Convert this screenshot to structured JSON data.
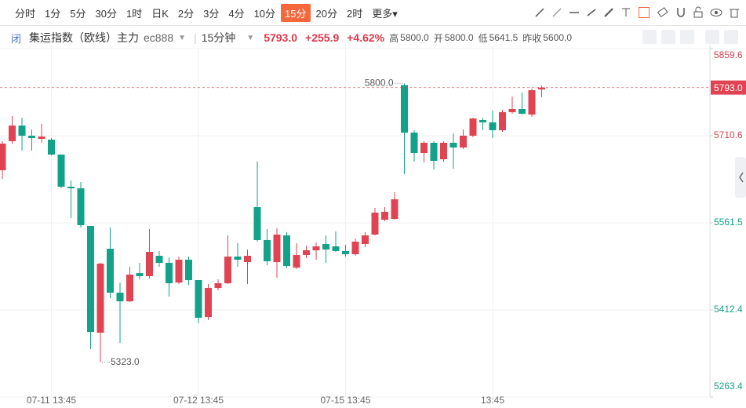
{
  "toolbar": {
    "periods": [
      "分时",
      "1分",
      "5分",
      "30分",
      "1时",
      "日K",
      "2分",
      "3分",
      "4分",
      "10分",
      "15分",
      "20分",
      "2时",
      "更多▾"
    ],
    "active": 10
  },
  "header": {
    "icon": "闭",
    "name": "集运指数（欧线）主力",
    "code": "ec888",
    "interval": "15分钟",
    "price": "5793.0",
    "change": "+255.9",
    "change_pct": "+4.62%",
    "high_label": "高",
    "high": "5800.0",
    "open_label": "开",
    "open": "5800.0",
    "low_label": "低",
    "low": "5641.5",
    "prev_close_label": "昨收",
    "prev_close": "5600.0"
  },
  "chart_data": {
    "type": "candlestick",
    "categories": [
      null,
      null,
      null,
      null,
      null,
      "07-11 13:45",
      null,
      null,
      null,
      null,
      null,
      null,
      null,
      null,
      null,
      null,
      null,
      null,
      null,
      null,
      "07-12 13:45",
      null,
      null,
      null,
      null,
      null,
      null,
      null,
      null,
      null,
      null,
      null,
      null,
      null,
      null,
      "07-15 13:45",
      null,
      null,
      null,
      null,
      null,
      null,
      null,
      null,
      null,
      null,
      null,
      null,
      null,
      null,
      "13:45",
      null,
      null,
      null,
      null,
      null
    ],
    "open": [
      5651.5,
      5701.2,
      5728.0,
      5710.6,
      5705.2,
      5703.9,
      5678.3,
      5623.3,
      5620.6,
      5556.1,
      5373.5,
      5517.2,
      5442.0,
      5427.2,
      5475.5,
      5470.2,
      5505.1,
      5493.0,
      5459.4,
      5498.4,
      5463.5,
      5400.3,
      5450.0,
      5458.1,
      5503.8,
      5494.3,
      5588.4,
      5532.0,
      5494.3,
      5540.0,
      5484.9,
      5506.4,
      5514.5,
      5525.2,
      5521.2,
      5513.2,
      5507.8,
      5525.2,
      5541.4,
      5566.9,
      5568.2,
      5797.3,
      5715.9,
      5681.0,
      5698.5,
      5670.3,
      5698.5,
      5690.4,
      5710.6,
      5737.4,
      5733.4,
      5720.0,
      5750.9,
      5756.2,
      5746.8,
      5789.8
    ],
    "high": [
      5701.2,
      5744.1,
      5741.5,
      5721.3,
      5730.7,
      5706.5,
      5678.3,
      5634.0,
      5631.3,
      5556.1,
      5493.0,
      5553.4,
      5459.4,
      5486.3,
      5493.0,
      5550.8,
      5513.2,
      5502.4,
      5503.8,
      5503.8,
      5463.5,
      5456.7,
      5464.8,
      5540.0,
      5526.6,
      5515.8,
      5666.3,
      5550.8,
      5552.1,
      5545.4,
      5526.6,
      5522.6,
      5527.9,
      5540.0,
      5546.7,
      5523.9,
      5534.6,
      5545.4,
      5587.0,
      5588.4,
      5613.9,
      5800.0,
      5720.0,
      5701.2,
      5701.2,
      5701.2,
      5714.6,
      5721.3,
      5741.5,
      5741.5,
      5753.5,
      5754.9,
      5777.7,
      5784.4,
      5791.2,
      5796.5
    ],
    "low": [
      5636.7,
      5697.1,
      5685.1,
      5685.1,
      5698.5,
      5677.0,
      5620.6,
      5569.6,
      5553.4,
      5345.3,
      5323.0,
      5432.6,
      5356.0,
      5425.9,
      5464.8,
      5466.1,
      5486.3,
      5435.3,
      5456.7,
      5455.4,
      5389.6,
      5395.0,
      5446.0,
      5456.7,
      5486.3,
      5456.7,
      5529.3,
      5489.0,
      5467.5,
      5483.6,
      5482.3,
      5501.1,
      5498.4,
      5493.0,
      5511.8,
      5503.8,
      5505.1,
      5519.9,
      5540.0,
      5564.2,
      5566.9,
      5644.8,
      5666.3,
      5664.9,
      5652.8,
      5666.3,
      5654.2,
      5687.7,
      5707.9,
      5720.0,
      5706.5,
      5717.3,
      5748.2,
      5746.8,
      5742.8,
      5776.4
    ],
    "close": [
      5697.1,
      5728.0,
      5710.6,
      5706.5,
      5709.2,
      5678.3,
      5623.3,
      5620.6,
      5557.5,
      5374.8,
      5491.7,
      5442.0,
      5427.2,
      5472.9,
      5470.2,
      5511.8,
      5493.0,
      5458.1,
      5498.4,
      5463.5,
      5399.0,
      5450.0,
      5458.1,
      5503.8,
      5498.4,
      5505.1,
      5532.0,
      5495.7,
      5541.4,
      5487.6,
      5506.4,
      5514.5,
      5521.2,
      5515.8,
      5513.2,
      5507.8,
      5529.3,
      5540.0,
      5579.0,
      5580.3,
      5601.8,
      5715.9,
      5681.0,
      5698.5,
      5667.6,
      5698.5,
      5690.4,
      5710.6,
      5740.1,
      5733.4,
      5720.0,
      5750.9,
      5756.2,
      5748.2,
      5788.5,
      5793.0
    ],
    "up_color": "#e04352",
    "down_color": "#12a189",
    "ylim": [
      5263.4,
      5859.6
    ],
    "yticks": [
      5263.4,
      5412.4,
      5561.5,
      5710.6,
      5859.6
    ],
    "grid": true,
    "high_annotation": "5800.0",
    "low_annotation": "5323.0",
    "last_price_label": "5793.0"
  }
}
